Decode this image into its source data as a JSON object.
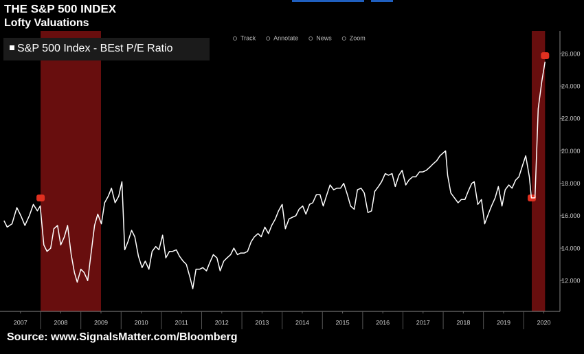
{
  "toolbar": [
    "Track",
    "Annotate",
    "News",
    "Zoom"
  ],
  "chart_data": {
    "type": "line",
    "title": "THE S&P 500 INDEX",
    "subtitle": "Lofty Valuations",
    "source": "Source: www.SignalsMatter.com/Bloomberg",
    "x": [
      2007.09,
      2007.17,
      2007.29,
      2007.41,
      2007.51,
      2007.61,
      2007.72,
      2007.82,
      2007.92,
      2007.99,
      2008.08,
      2008.16,
      2008.25,
      2008.33,
      2008.42,
      2008.5,
      2008.59,
      2008.67,
      2008.76,
      2008.84,
      2008.91,
      2009.0,
      2009.08,
      2009.17,
      2009.25,
      2009.34,
      2009.42,
      2009.51,
      2009.59,
      2009.68,
      2009.76,
      2009.85,
      2009.94,
      2010.02,
      2010.09,
      2010.17,
      2010.26,
      2010.34,
      2010.43,
      2010.52,
      2010.6,
      2010.69,
      2010.77,
      2010.86,
      2010.94,
      2011.03,
      2011.11,
      2011.2,
      2011.28,
      2011.37,
      2011.45,
      2011.54,
      2011.62,
      2011.71,
      2011.78,
      2011.86,
      2011.95,
      2012.03,
      2012.12,
      2012.2,
      2012.29,
      2012.38,
      2012.46,
      2012.55,
      2012.63,
      2012.72,
      2012.8,
      2012.89,
      2012.97,
      2013.06,
      2013.14,
      2013.23,
      2013.31,
      2013.4,
      2013.48,
      2013.57,
      2013.66,
      2013.74,
      2013.83,
      2013.91,
      2014.0,
      2014.08,
      2014.17,
      2014.25,
      2014.34,
      2014.42,
      2014.51,
      2014.59,
      2014.68,
      2014.76,
      2014.85,
      2014.94,
      2015.02,
      2015.11,
      2015.19,
      2015.28,
      2015.36,
      2015.45,
      2015.53,
      2015.62,
      2015.7,
      2015.79,
      2015.87,
      2015.96,
      2016.04,
      2016.13,
      2016.22,
      2016.3,
      2016.39,
      2016.47,
      2016.56,
      2016.64,
      2016.73,
      2016.81,
      2016.9,
      2016.98,
      2017.07,
      2017.15,
      2017.24,
      2017.32,
      2017.41,
      2017.49,
      2017.58,
      2017.67,
      2017.75,
      2017.84,
      2017.92,
      2018.01,
      2018.06,
      2018.11,
      2018.19,
      2018.28,
      2018.37,
      2018.45,
      2018.54,
      2018.62,
      2018.71,
      2018.77,
      2018.86,
      2018.95,
      2019.03,
      2019.12,
      2019.2,
      2019.29,
      2019.37,
      2019.46,
      2019.54,
      2019.63,
      2019.71,
      2019.8,
      2019.88,
      2019.97,
      2020.05,
      2020.14,
      2020.19,
      2020.28,
      2020.36,
      2020.45,
      2020.53
    ],
    "series": [
      {
        "name": "S&P 500 Index - BEst P/E Ratio",
        "color": "#ffffff",
        "values": [
          15.7,
          15.3,
          15.5,
          16.5,
          16.0,
          15.4,
          16.0,
          16.7,
          16.3,
          16.6,
          14.2,
          13.8,
          14.0,
          15.2,
          15.4,
          14.2,
          14.7,
          15.4,
          13.6,
          12.5,
          11.9,
          12.7,
          12.5,
          12.0,
          13.6,
          15.4,
          16.1,
          15.5,
          16.8,
          17.2,
          17.7,
          16.8,
          17.2,
          18.1,
          13.9,
          14.4,
          15.1,
          14.7,
          13.5,
          12.8,
          13.2,
          12.7,
          13.8,
          14.1,
          13.9,
          14.8,
          13.4,
          13.8,
          13.8,
          13.9,
          13.5,
          13.2,
          13.0,
          12.2,
          11.5,
          12.7,
          12.7,
          12.8,
          12.6,
          13.1,
          13.6,
          13.4,
          12.6,
          13.2,
          13.4,
          13.6,
          14.0,
          13.6,
          13.7,
          13.7,
          13.8,
          14.4,
          14.7,
          14.9,
          14.7,
          15.3,
          14.9,
          15.4,
          15.8,
          16.3,
          16.7,
          15.2,
          15.8,
          15.9,
          16.0,
          16.4,
          16.6,
          16.1,
          16.7,
          16.8,
          17.3,
          17.3,
          16.6,
          17.3,
          17.9,
          17.6,
          17.7,
          17.7,
          18.0,
          17.3,
          16.6,
          16.4,
          17.6,
          17.7,
          17.4,
          16.2,
          16.3,
          17.5,
          17.8,
          18.1,
          18.6,
          18.5,
          18.6,
          17.8,
          18.5,
          18.8,
          17.9,
          18.2,
          18.4,
          18.4,
          18.7,
          18.7,
          18.8,
          19.0,
          19.2,
          19.4,
          19.7,
          19.9,
          20.0,
          18.5,
          17.4,
          17.1,
          16.8,
          17.0,
          17.0,
          17.5,
          18.0,
          18.1,
          16.7,
          17.0,
          15.5,
          16.1,
          16.6,
          17.1,
          17.8,
          16.6,
          17.6,
          17.9,
          17.7,
          18.2,
          18.4,
          19.1,
          19.7,
          18.4,
          17.1,
          17.1,
          22.6,
          24.3,
          25.5
        ]
      }
    ],
    "shaded_regions": [
      [
        2008.0,
        2009.5
      ],
      [
        2020.2,
        2020.53
      ]
    ],
    "shade_color": "#7a1010",
    "xlim": [
      2007,
      2020.9
    ],
    "xticks": [
      {
        "value": 2007.5,
        "label": "2007"
      },
      {
        "value": 2008.5,
        "label": "2008"
      },
      {
        "value": 2009.5,
        "label": "2009"
      },
      {
        "value": 2010.5,
        "label": "2010"
      },
      {
        "value": 2011.5,
        "label": "2011"
      },
      {
        "value": 2012.5,
        "label": "2012"
      },
      {
        "value": 2013.5,
        "label": "2013"
      },
      {
        "value": 2014.5,
        "label": "2014"
      },
      {
        "value": 2015.5,
        "label": "2015"
      },
      {
        "value": 2016.5,
        "label": "2016"
      },
      {
        "value": 2017.5,
        "label": "2017"
      },
      {
        "value": 2018.5,
        "label": "2018"
      },
      {
        "value": 2019.5,
        "label": "2019"
      },
      {
        "value": 2020.5,
        "label": "2020"
      }
    ],
    "ylim": [
      10.1,
      27.4
    ],
    "yticks": [
      {
        "value": 12,
        "label": "12.000"
      },
      {
        "value": 14,
        "label": "14.000"
      },
      {
        "value": 16,
        "label": "16.000"
      },
      {
        "value": 18,
        "label": "18.000"
      },
      {
        "value": 20,
        "label": "20.000"
      },
      {
        "value": 22,
        "label": "22.000"
      },
      {
        "value": 24,
        "label": "24.000"
      },
      {
        "value": 26,
        "label": "26.000"
      }
    ]
  }
}
